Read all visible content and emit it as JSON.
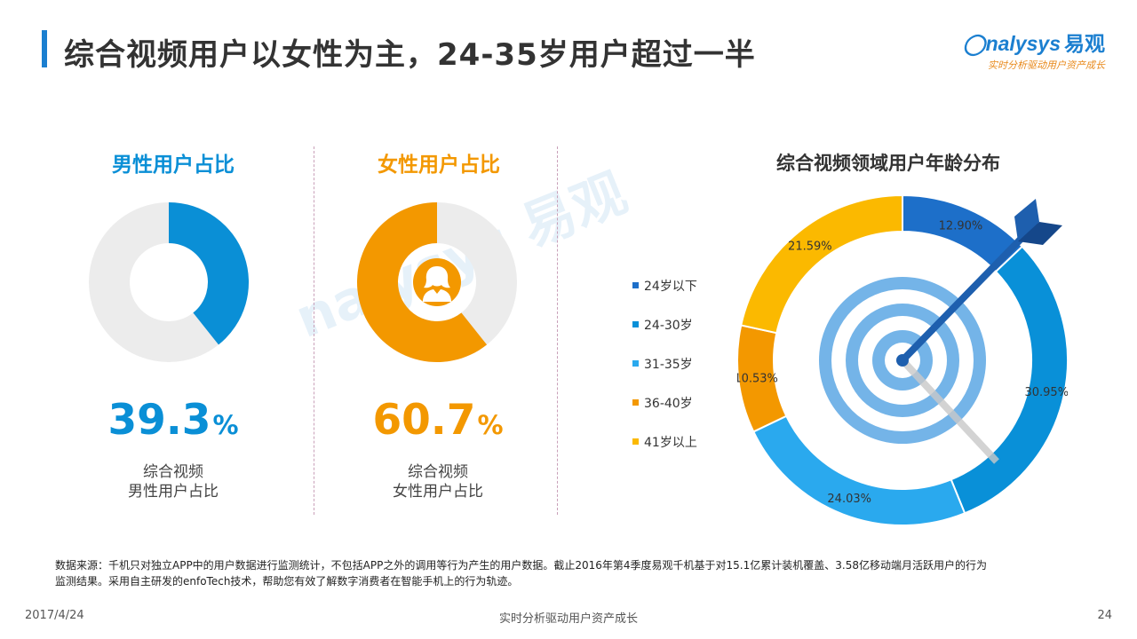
{
  "header": {
    "title": "综合视频用户以女性为主，24-35岁用户超过一半",
    "logo_en": "nalysys",
    "logo_cn": "易观",
    "logo_tagline": "实时分析驱动用户资产成长"
  },
  "watermark": "nalysys 易观",
  "male": {
    "title": "男性用户占比",
    "value": "39.3",
    "unit": "%",
    "caption_line1": "综合视频",
    "caption_line2": "男性用户占比",
    "color": "#0a8fd6"
  },
  "female": {
    "title": "女性用户占比",
    "value": "60.7",
    "unit": "%",
    "caption_line1": "综合视频",
    "caption_line2": "女性用户占比",
    "color": "#f39800"
  },
  "age_chart": {
    "title": "综合视频领域用户年龄分布"
  },
  "chart_data": [
    {
      "type": "pie",
      "title": "男性用户占比",
      "categories": [
        "男性"
      ],
      "values": [
        39.3
      ],
      "unit": "%",
      "colors": [
        "#0a8fd6",
        "#ececec"
      ]
    },
    {
      "type": "pie",
      "title": "女性用户占比",
      "categories": [
        "女性"
      ],
      "values": [
        60.7
      ],
      "unit": "%",
      "colors": [
        "#f39800",
        "#ececec"
      ]
    },
    {
      "type": "pie",
      "title": "综合视频领域用户年龄分布",
      "categories": [
        "24岁以下",
        "24-30岁",
        "31-35岁",
        "36-40岁",
        "41岁以上"
      ],
      "values": [
        12.9,
        30.95,
        24.03,
        10.53,
        21.59
      ],
      "labels": [
        "12.90%",
        "30.95%",
        "24.03%",
        "10.53%",
        "21.59%"
      ],
      "colors": [
        "#1d6fc9",
        "#0990d8",
        "#2aa9ee",
        "#f39800",
        "#fbb900"
      ],
      "legend": "left"
    }
  ],
  "footnote": {
    "line1": "数据来源：千机只对独立APP中的用户数据进行监测统计，不包括APP之外的调用等行为产生的用户数据。截止2016年第4季度易观千机基于对15.1亿累计装机覆盖、3.58亿移动端月活跃用户的行为",
    "line2": "监测结果。采用自主研发的enfoTech技术，帮助您有效了解数字消费者在智能手机上的行为轨迹。"
  },
  "footer": {
    "date": "2017/4/24",
    "center": "实时分析驱动用户资产成长",
    "page": "24"
  }
}
